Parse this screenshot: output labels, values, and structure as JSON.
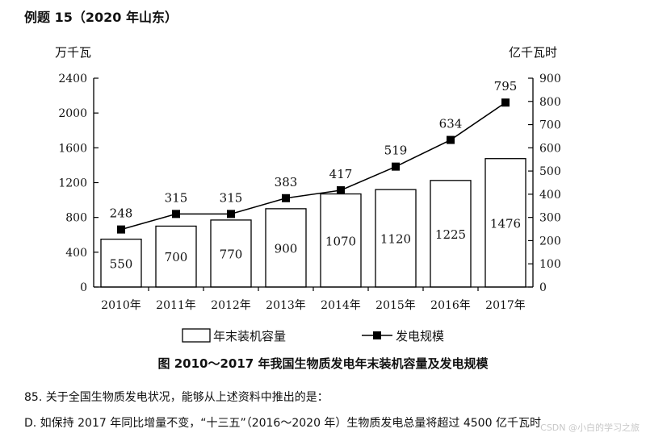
{
  "header": {
    "title": "例题 15（2020 年山东）"
  },
  "chart_data": {
    "type": "bar+line",
    "categories": [
      "2010年",
      "2011年",
      "2012年",
      "2013年",
      "2014年",
      "2015年",
      "2016年",
      "2017年"
    ],
    "series": [
      {
        "name": "年末装机容量",
        "type": "bar",
        "axis": "left",
        "values": [
          550,
          700,
          770,
          900,
          1070,
          1120,
          1225,
          1476
        ]
      },
      {
        "name": "发电规模",
        "type": "line",
        "axis": "right",
        "values": [
          248,
          315,
          315,
          383,
          417,
          519,
          634,
          795
        ]
      }
    ],
    "y_left": {
      "label": "万千瓦",
      "ticks": [
        "0",
        "400",
        "800",
        "1200",
        "1600",
        "2000",
        "2400"
      ],
      "range": [
        0,
        2400
      ]
    },
    "y_right": {
      "label": "亿千瓦时",
      "ticks": [
        "0",
        "100",
        "200",
        "300",
        "400",
        "500",
        "600",
        "700",
        "800",
        "900"
      ],
      "range": [
        0,
        900
      ]
    },
    "legend_position": "bottom",
    "grid": false,
    "caption": "图   2010～2017 年我国生物质发电年末装机容量及发电规模"
  },
  "question": {
    "stem": "85. 关于全国生物质发电状况，能够从上述资料中推出的是：",
    "option_d": "D. 如保持 2017 年同比增量不变，“十三五”（2016～2020 年）生物质发电总量将超过 4500 亿千瓦时"
  },
  "watermark": "CSDN @小白的学习之旅"
}
